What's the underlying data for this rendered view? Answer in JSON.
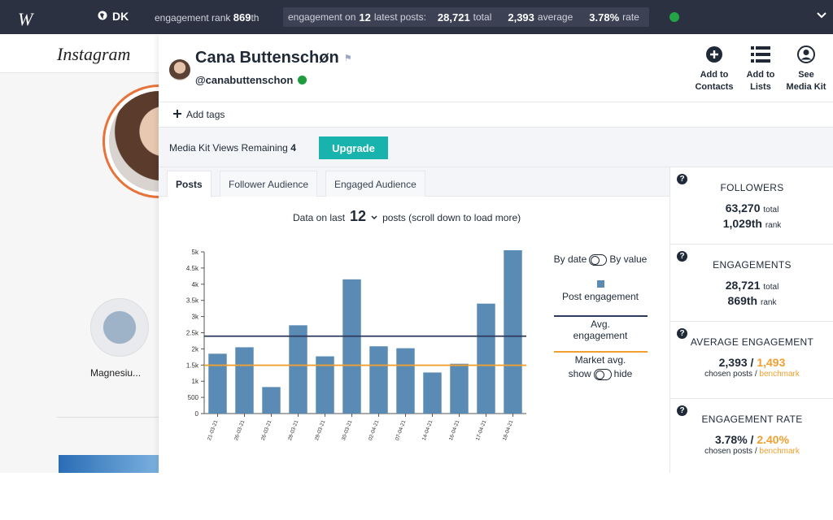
{
  "topbar": {
    "logo": "W",
    "region": "DK",
    "engagement_rank_label": "engagement rank",
    "engagement_rank_value": "869",
    "engagement_rank_suffix": "th",
    "engagement_label_prefix": "engagement on",
    "engagement_posts": "12",
    "engagement_label_suffix": "latest posts:",
    "total_value": "28,721",
    "total_label": "total",
    "average_value": "2,393",
    "average_label": "average",
    "rate_value": "3.78%",
    "rate_label": "rate"
  },
  "instagram": {
    "wordmark": "Instagram",
    "highlight_label": "Magnesiu..."
  },
  "profile": {
    "name": "Cana Buttenschøn",
    "handle": "@canabuttenschon"
  },
  "actions": [
    {
      "line1": "Add to",
      "line2": "Contacts"
    },
    {
      "line1": "Add to",
      "line2": "Lists"
    },
    {
      "line1": "See",
      "line2": "Media Kit"
    }
  ],
  "add_tags": "Add tags",
  "media_kit": {
    "label": "Media Kit Views Remaining",
    "remaining": "4",
    "upgrade": "Upgrade"
  },
  "tabs": [
    "Posts",
    "Follower Audience",
    "Engaged Audience"
  ],
  "data_last": {
    "prefix": "Data on last",
    "count": "12",
    "suffix": "posts (scroll down to load more)"
  },
  "chart_data": {
    "type": "bar",
    "categories": [
      "21-03-21",
      "26-03-21",
      "26-03-21",
      "28-03-21",
      "29-03-21",
      "30-03-21",
      "02-04-21",
      "07-04-21",
      "14-04-21",
      "16-04-21",
      "17-04-21",
      "18-04-21"
    ],
    "values": [
      1850,
      2050,
      820,
      2730,
      1770,
      4150,
      2080,
      2020,
      1270,
      1540,
      3400,
      5050
    ],
    "avg_engagement": 2393,
    "market_avg": 1493,
    "ylim": [
      0,
      5000
    ],
    "yticks": [
      "0",
      "500",
      "1k",
      "1.5k",
      "2k",
      "2.5k",
      "3k",
      "3.5k",
      "4k",
      "4.5k",
      "5k"
    ],
    "colors": {
      "bar": "#5a8bb5",
      "avg": "#2f3b5c",
      "market": "#f0a030"
    }
  },
  "legend": {
    "by_date": "By date",
    "by_value": "By value",
    "post_engagement": "Post engagement",
    "avg_line1": "Avg.",
    "avg_line2": "engagement",
    "market_avg": "Market avg.",
    "show": "show",
    "hide": "hide"
  },
  "stats": [
    {
      "title": "FOLLOWERS",
      "v1": "63,270",
      "v1_label": "total",
      "v2": "1,029th",
      "v2_label": "rank"
    },
    {
      "title": "ENGAGEMENTS",
      "v1": "28,721",
      "v1_label": "total",
      "v2": "869th",
      "v2_label": "rank"
    },
    {
      "title": "AVERAGE ENGAGEMENT",
      "v1": "2,393",
      "sep": " / ",
      "v2": "1,493",
      "sub1": "chosen posts / ",
      "sub2": "benchmark"
    },
    {
      "title": "ENGAGEMENT RATE",
      "v1": "3.78%",
      "sep": " / ",
      "v2": "2.40%",
      "sub1": "chosen posts / ",
      "sub2": "benchmark"
    }
  ]
}
